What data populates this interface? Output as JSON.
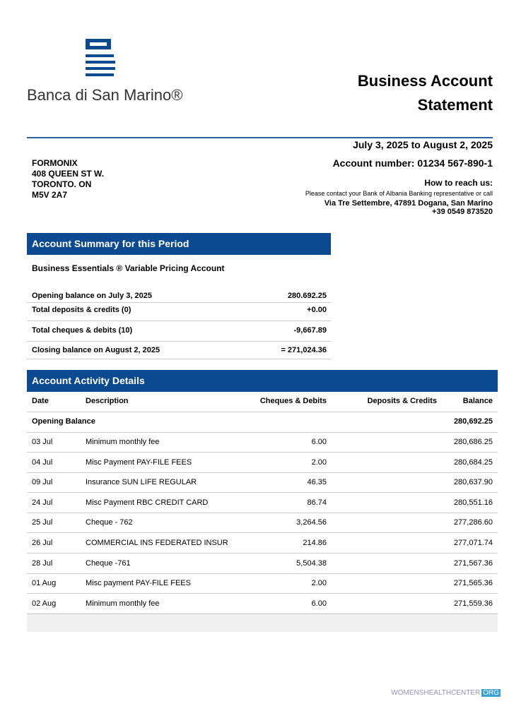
{
  "header": {
    "bank_name": "Banca di San Marino®",
    "title": "Business Account Statement",
    "period": "July 3, 2025 to August 2, 2025"
  },
  "customer": {
    "lines": [
      "FORMONIX",
      "408 QUEEN ST W.",
      "TORONTO. ON",
      "M5V 2A7"
    ]
  },
  "contact": {
    "account_number": "Account number: 01234 567-890-1",
    "heading": "How to reach us:",
    "note": "Please contact your Bank of Albania Banking representative or call",
    "address": "Via Tre Settembre, 47891 Dogana, San Marino",
    "phone": "+39 0549 873520"
  },
  "summary": {
    "heading": "Account Summary for this Period",
    "account_type": "Business Essentials ® Variable Pricing Account",
    "rows": [
      [
        "Opening balance on July 3, 2025",
        "280.692.25"
      ],
      [
        "Total deposits & credits (0)",
        "+0.00"
      ],
      [
        "Total cheques & debits (10)",
        "-9,667.89"
      ],
      [
        "Closing balance on August 2, 2025",
        "= 271,024.36"
      ]
    ]
  },
  "activity": {
    "heading": "Account Activity Details",
    "columns": [
      "Date",
      "Description",
      "Cheques & Debits",
      "Deposits & Credits",
      "Balance"
    ],
    "opening": {
      "label": "Opening Balance",
      "balance": "280,692.25"
    },
    "rows": [
      {
        "date": "03 Jul",
        "description": "Minimum monthly fee",
        "debit": "6.00",
        "balance": "280,686.25"
      },
      {
        "date": "04 Jul",
        "description": "Misc Payment PAY-FILE FEES",
        "debit": "2.00",
        "balance": "280,684.25"
      },
      {
        "date": "09 Jul",
        "description": "Insurance SUN LIFE REGULAR",
        "debit": "46.35",
        "balance": "280,637.90"
      },
      {
        "date": "24 Jul",
        "description": "Misc Payment RBC CREDIT CARD",
        "debit": "86.74",
        "balance": "280,551.16"
      },
      {
        "date": "25 Jul",
        "description": "Cheque - 762",
        "debit": "3,264.56",
        "balance": "277,286.60"
      },
      {
        "date": "26 Jul",
        "description": "COMMERCIAL INS FEDERATED INSUR",
        "debit": "214.86",
        "balance": "277,071.74"
      },
      {
        "date": "28 Jul",
        "description": "Cheque -761",
        "debit": "5,504.38",
        "balance": "271,567.36"
      },
      {
        "date": "01 Aug",
        "description": "Misc payment PAY-FILE FEES",
        "debit": "2.00",
        "balance": "271,565.36"
      },
      {
        "date": "02 Aug",
        "description": "Minimum monthly fee",
        "debit": "6.00",
        "balance": "271,559.36"
      }
    ]
  },
  "watermark": {
    "site": "WOMENSHEALTHCENTER",
    "tld": "ORG"
  }
}
